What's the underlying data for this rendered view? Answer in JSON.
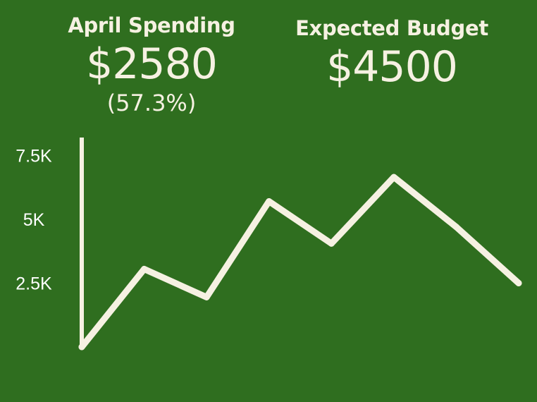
{
  "stats": {
    "spending": {
      "label": "April Spending",
      "value": "$2580",
      "percent": "(57.3%)"
    },
    "budget": {
      "label": "Expected Budget",
      "value": "$4500"
    }
  },
  "colors": {
    "background": "#2f6e1f",
    "foreground": "#f6f1e2"
  },
  "chart_data": {
    "type": "line",
    "title": "",
    "xlabel": "",
    "ylabel": "",
    "x": [
      0,
      1,
      2,
      3,
      4,
      5,
      6,
      7
    ],
    "series": [
      {
        "values": [
          0,
          3050,
          1950,
          5700,
          4050,
          6650,
          4700,
          2500
        ]
      }
    ],
    "ylim": [
      0,
      8200
    ],
    "yticks": [
      2500,
      5000,
      7500
    ],
    "ytick_labels": [
      "2.5K",
      "5K",
      "7.5K"
    ],
    "grid": false,
    "legend": "none"
  }
}
